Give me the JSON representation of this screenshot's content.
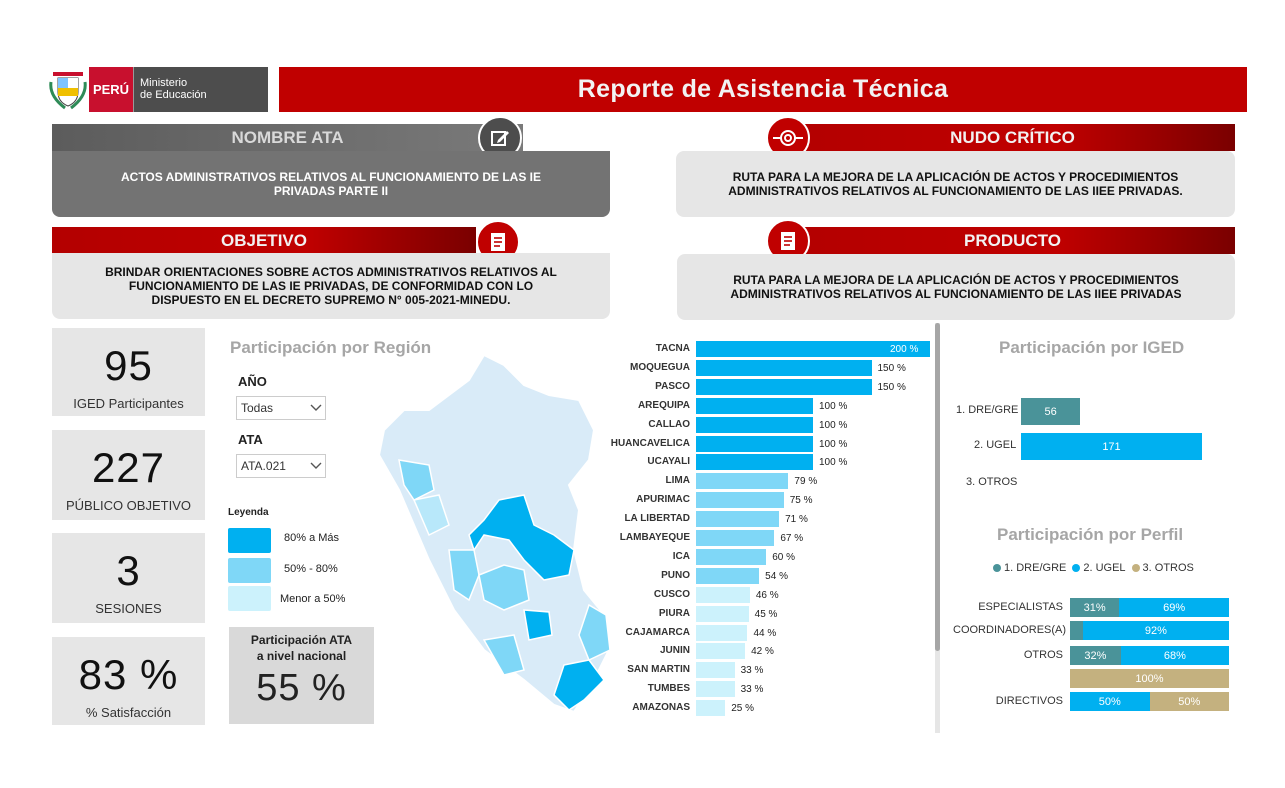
{
  "header": {
    "country": "PERÚ",
    "ministry_line1": "Ministerio",
    "ministry_line2": "de Educación",
    "title": "Reporte de Asistencia Técnica"
  },
  "nombre_ata": {
    "header": "NOMBRE ATA",
    "text": "ACTOS ADMINISTRATIVOS RELATIVOS AL FUNCIONAMIENTO DE LAS IE PRIVADAS PARTE II"
  },
  "nudo_critico": {
    "header": "NUDO CRÍTICO",
    "text": "RUTA PARA LA MEJORA DE LA APLICACIÓN DE ACTOS Y PROCEDIMIENTOS ADMINISTRATIVOS RELATIVOS AL FUNCIONAMIENTO DE LAS IIEE PRIVADAS."
  },
  "objetivo": {
    "header": "OBJETIVO",
    "text": "BRINDAR ORIENTACIONES SOBRE ACTOS ADMINISTRATIVOS RELATIVOS AL FUNCIONAMIENTO DE LAS IE PRIVADAS, DE CONFORMIDAD CON LO DISPUESTO EN EL DECRETO SUPREMO N° 005-2021-MINEDU."
  },
  "producto": {
    "header": "PRODUCTO",
    "text": "RUTA PARA LA MEJORA DE LA APLICACIÓN DE ACTOS Y PROCEDIMIENTOS ADMINISTRATIVOS RELATIVOS AL FUNCIONAMIENTO DE LAS IIEE PRIVADAS"
  },
  "kpis": [
    {
      "value": "95",
      "label": "IGED Participantes"
    },
    {
      "value": "227",
      "label": "PÚBLICO OBJETIVO"
    },
    {
      "value": "3",
      "label": "SESIONES"
    },
    {
      "value": "83 %",
      "label": "% Satisfacción"
    }
  ],
  "region": {
    "title": "Participación por Región",
    "year_label": "AÑO",
    "year_value": "Todas",
    "ata_label": "ATA",
    "ata_value": "ATA.021",
    "legend_title": "Leyenda",
    "legend": [
      {
        "label": "80% a Más",
        "color": "#00b0f0"
      },
      {
        "label": "50% - 80%",
        "color": "#7fd7f7"
      },
      {
        "label": "Menor a 50%",
        "color": "#ccf2fc"
      }
    ],
    "national_title_1": "Participación ATA",
    "national_title_2": "a nivel nacional",
    "national_value": "55 %"
  },
  "chart_data": [
    {
      "type": "bar",
      "orientation": "horizontal",
      "categories": [
        "TACNA",
        "MOQUEGUA",
        "PASCO",
        "AREQUIPA",
        "CALLAO",
        "HUANCAVELICA",
        "UCAYALI",
        "LIMA",
        "APURIMAC",
        "LA LIBERTAD",
        "LAMBAYEQUE",
        "ICA",
        "PUNO",
        "CUSCO",
        "PIURA",
        "CAJAMARCA",
        "JUNIN",
        "SAN MARTIN",
        "TUMBES",
        "AMAZONAS"
      ],
      "values": [
        200,
        150,
        150,
        100,
        100,
        100,
        100,
        79,
        75,
        71,
        67,
        60,
        54,
        46,
        45,
        44,
        42,
        33,
        33,
        25
      ],
      "labels": [
        "200 %",
        "150 %",
        "150 %",
        "100 %",
        "100 %",
        "100 %",
        "100 %",
        "79 %",
        "75 %",
        "71 %",
        "67 %",
        "60 %",
        "54 %",
        "46 %",
        "45 %",
        "44 %",
        "42 %",
        "33 %",
        "33 %",
        "25 %"
      ],
      "colors": {
        "high": "#00b0f0",
        "mid": "#7fd7f7",
        "low": "#ccf2fc"
      }
    },
    {
      "type": "bar",
      "orientation": "horizontal",
      "title": "Participación por IGED",
      "categories": [
        "1. DRE/GRE",
        "2. UGEL",
        "3. OTROS"
      ],
      "values": [
        56,
        171,
        0
      ],
      "labels": [
        "56",
        "171",
        ""
      ],
      "colors": [
        "#4a9399",
        "#00b0f0",
        "#c4b17f"
      ]
    },
    {
      "type": "bar",
      "stacked": true,
      "orientation": "horizontal",
      "title": "Participación por Perfil",
      "legend": [
        {
          "name": "1. DRE/GRE",
          "color": "#4a9399"
        },
        {
          "name": "2. UGEL",
          "color": "#00b0f0"
        },
        {
          "name": "3. OTROS",
          "color": "#c4b17f"
        }
      ],
      "categories": [
        "ESPECIALISTAS",
        "COORDINADORES(A)",
        "OTROS",
        "",
        "DIRECTIVOS"
      ],
      "rows": [
        [
          {
            "s": 0,
            "v": 31,
            "label": "31%"
          },
          {
            "s": 1,
            "v": 69,
            "label": "69%"
          }
        ],
        [
          {
            "s": 0,
            "v": 8,
            "label": ""
          },
          {
            "s": 1,
            "v": 92,
            "label": "92%"
          }
        ],
        [
          {
            "s": 0,
            "v": 32,
            "label": "32%"
          },
          {
            "s": 1,
            "v": 68,
            "label": "68%"
          }
        ],
        [
          {
            "s": 2,
            "v": 100,
            "label": "100%"
          }
        ],
        [
          {
            "s": 1,
            "v": 50,
            "label": "50%"
          },
          {
            "s": 2,
            "v": 50,
            "label": "50%"
          }
        ]
      ]
    }
  ]
}
